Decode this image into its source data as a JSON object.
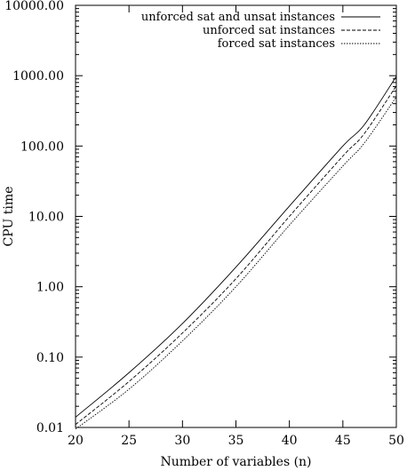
{
  "chart_data": {
    "type": "line",
    "title": "",
    "xlabel": "Number of variables (n)",
    "ylabel": "CPU time",
    "xlim": [
      20,
      50
    ],
    "ylim": [
      0.01,
      10000
    ],
    "yscale": "log",
    "grid": false,
    "legend_position": "top-right",
    "x_ticks": [
      20,
      25,
      30,
      35,
      40,
      45,
      50
    ],
    "y_ticks": [
      0.01,
      0.1,
      1,
      10,
      100,
      1000,
      10000
    ],
    "y_tick_labels": [
      "0.01",
      "0.10",
      "1.00",
      "10.00",
      "100.00",
      "1000.00",
      "10000.00"
    ],
    "series": [
      {
        "name": "unforced sat and unsat instances",
        "dash": "solid",
        "x": [
          20,
          25,
          30,
          35,
          40,
          45,
          47,
          50
        ],
        "y": [
          0.014,
          0.06,
          0.3,
          1.9,
          14,
          100,
          200,
          980
        ]
      },
      {
        "name": "unforced sat instances",
        "dash": "dashed",
        "x": [
          20,
          25,
          30,
          35,
          40,
          45,
          47,
          50
        ],
        "y": [
          0.011,
          0.045,
          0.22,
          1.3,
          10,
          72,
          150,
          720
        ]
      },
      {
        "name": "forced sat instances",
        "dash": "dotted",
        "x": [
          20,
          25,
          30,
          35,
          40,
          45,
          47,
          50
        ],
        "y": [
          0.0095,
          0.035,
          0.17,
          1.0,
          7.5,
          52,
          110,
          500
        ]
      }
    ]
  }
}
